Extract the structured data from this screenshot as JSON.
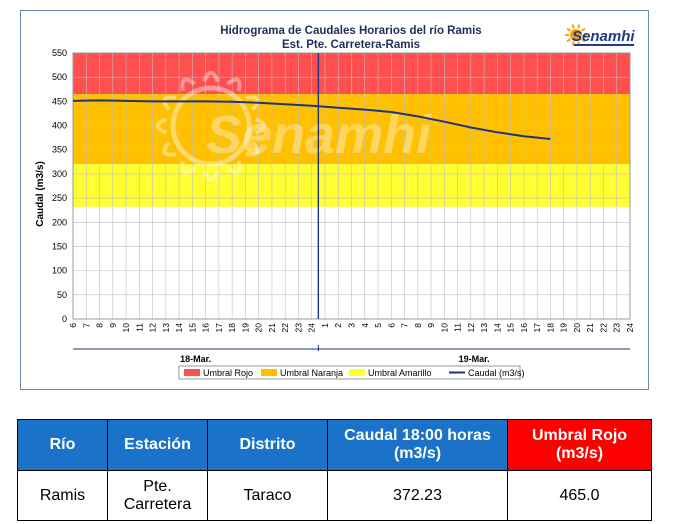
{
  "colors": {
    "rojo": "#ff4f4f",
    "naranja": "#ffc000",
    "amarillo": "#ffff33",
    "caudal_line": "#1f3380",
    "table_header_blue": "#1a73c9",
    "table_header_red": "#ff0000"
  },
  "logo": {
    "text": "Senamhi",
    "icon": "sun-icon"
  },
  "watermark": {
    "text": "Senamhi"
  },
  "chart_data": {
    "type": "line",
    "title": "Hidrograma de Caudales Horarios del río Ramis",
    "subtitle": "Est. Pte. Carretera-Ramis",
    "ylabel": "Caudal  (m3/s)",
    "xlabel": "",
    "ylim": [
      0,
      550
    ],
    "yticks": [
      0,
      50,
      100,
      150,
      200,
      250,
      300,
      350,
      400,
      450,
      500,
      550
    ],
    "x_tick_labels": [
      "6",
      "7",
      "8",
      "9",
      "10",
      "11",
      "12",
      "13",
      "14",
      "15",
      "16",
      "17",
      "18",
      "19",
      "20",
      "21",
      "22",
      "23",
      "24",
      "1",
      "2",
      "3",
      "4",
      "5",
      "6",
      "7",
      "8",
      "9",
      "10",
      "11",
      "12",
      "13",
      "14",
      "15",
      "16",
      "17",
      "18",
      "19",
      "20",
      "21",
      "22",
      "23",
      "24"
    ],
    "day_labels": [
      "18-Mar.",
      "19-Mar."
    ],
    "day_divider_index": 18.5,
    "grid": true,
    "legend_position": "bottom",
    "bands": [
      {
        "name": "Umbral Rojo",
        "from": 465,
        "to": 550,
        "color": "#ff4f4f"
      },
      {
        "name": "Umbral Naranja",
        "from": 320,
        "to": 465,
        "color": "#ffc000"
      },
      {
        "name": "Umbral Amarillo",
        "from": 232,
        "to": 320,
        "color": "#ffff33"
      }
    ],
    "series": [
      {
        "name": "Caudal (m3/s)",
        "x_index": [
          0,
          2,
          4,
          6,
          8,
          10,
          12,
          14,
          16,
          18,
          20,
          22,
          24,
          26,
          28,
          30,
          32,
          34,
          36
        ],
        "values": [
          451,
          452,
          451,
          450,
          450,
          450,
          449,
          447,
          444,
          441,
          437,
          433,
          428,
          419,
          408,
          396,
          386,
          378,
          372.23
        ]
      }
    ],
    "legend": [
      "Umbral Rojo",
      "Umbral Naranja",
      "Umbral Amarillo",
      "Caudal (m3/s)"
    ]
  },
  "table": {
    "headers": [
      "Río",
      "Estación",
      "Distrito",
      "Caudal  18:00 horas (m3/s)",
      "Umbral Rojo (m3/s)"
    ],
    "row": [
      "Ramis",
      "Pte. Carretera",
      "Taraco",
      "372.23",
      "465.0"
    ]
  }
}
